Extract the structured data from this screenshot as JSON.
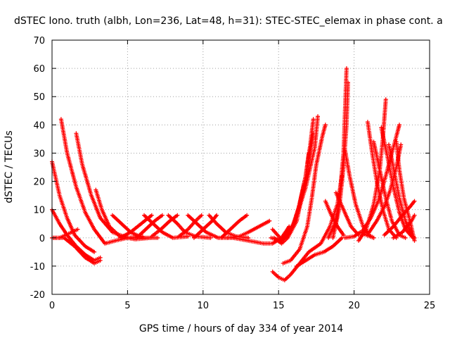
{
  "chart_data": {
    "type": "scatter",
    "title": "dSTEC Iono. truth (albh, Lon=236, Lat=48, h=31): STEC-STEC_elemax in phase cont. a",
    "xlabel": "GPS time / hours of day 334 of year 2014",
    "ylabel": "dSTEC  / TECUs",
    "xlim": [
      0,
      25
    ],
    "ylim": [
      -20,
      70
    ],
    "xticks": [
      0,
      5,
      10,
      15,
      20,
      25
    ],
    "yticks": [
      -20,
      -10,
      0,
      10,
      20,
      30,
      40,
      50,
      60,
      70
    ],
    "xtick_labels": [
      "0",
      "5",
      "10",
      "15",
      "20",
      "25"
    ],
    "ytick_labels": [
      "-20",
      "-10",
      "0",
      "10",
      "20",
      "30",
      "40",
      "50",
      "60",
      "70"
    ],
    "grid": true,
    "marker": "plus",
    "color": "#ff0000",
    "tracks": [
      [
        [
          0.0,
          27
        ],
        [
          0.5,
          15
        ],
        [
          1.0,
          7
        ],
        [
          1.5,
          1
        ],
        [
          2.2,
          -3
        ],
        [
          2.8,
          -5
        ]
      ],
      [
        [
          0.6,
          42
        ],
        [
          1.0,
          30
        ],
        [
          1.6,
          18
        ],
        [
          2.2,
          9
        ],
        [
          2.8,
          3
        ],
        [
          3.5,
          -2
        ],
        [
          4.2,
          -1
        ],
        [
          5.0,
          0
        ]
      ],
      [
        [
          1.6,
          37
        ],
        [
          2.0,
          26
        ],
        [
          2.6,
          15
        ],
        [
          3.2,
          7
        ],
        [
          4.0,
          2
        ],
        [
          5.0,
          0
        ],
        [
          6.0,
          0.5
        ]
      ],
      [
        [
          2.9,
          17
        ],
        [
          3.3,
          10
        ],
        [
          3.8,
          4
        ],
        [
          4.5,
          0.5
        ],
        [
          5.5,
          -0.5
        ],
        [
          6.5,
          0
        ]
      ],
      [
        [
          0.0,
          10
        ],
        [
          0.5,
          5
        ],
        [
          1.0,
          1
        ],
        [
          1.6,
          -3
        ],
        [
          2.2,
          -6
        ],
        [
          2.8,
          -8
        ],
        [
          3.2,
          -7
        ]
      ],
      [
        [
          0.0,
          0
        ],
        [
          0.8,
          0
        ],
        [
          1.5,
          -3
        ],
        [
          2.2,
          -7
        ],
        [
          2.8,
          -9
        ],
        [
          3.2,
          -8
        ]
      ],
      [
        [
          0.1,
          0
        ],
        [
          0.5,
          0
        ],
        [
          0.9,
          1
        ],
        [
          1.3,
          2
        ],
        [
          1.7,
          3
        ]
      ],
      [
        [
          4.0,
          8
        ],
        [
          4.6,
          5
        ],
        [
          5.2,
          2
        ],
        [
          6.0,
          0
        ],
        [
          7.0,
          0
        ]
      ],
      [
        [
          4.5,
          0
        ],
        [
          5.2,
          2
        ],
        [
          5.9,
          5
        ],
        [
          6.6,
          8
        ]
      ],
      [
        [
          5.6,
          0
        ],
        [
          6.2,
          3
        ],
        [
          6.8,
          6
        ],
        [
          7.3,
          8
        ]
      ],
      [
        [
          6.1,
          8
        ],
        [
          6.7,
          5
        ],
        [
          7.3,
          2
        ],
        [
          8.0,
          0
        ],
        [
          9.0,
          0.5
        ]
      ],
      [
        [
          6.6,
          0.5
        ],
        [
          7.2,
          3
        ],
        [
          7.8,
          6
        ],
        [
          8.3,
          8
        ]
      ],
      [
        [
          7.7,
          8
        ],
        [
          8.3,
          5
        ],
        [
          8.8,
          2
        ],
        [
          9.5,
          0.5
        ],
        [
          10.5,
          0
        ]
      ],
      [
        [
          8.4,
          0.5
        ],
        [
          9.0,
          3
        ],
        [
          9.5,
          6
        ],
        [
          9.9,
          8
        ]
      ],
      [
        [
          9.0,
          8
        ],
        [
          9.6,
          5
        ],
        [
          10.2,
          2
        ],
        [
          11.0,
          0
        ],
        [
          12.0,
          0
        ]
      ],
      [
        [
          9.4,
          0
        ],
        [
          10.0,
          3
        ],
        [
          10.6,
          6
        ],
        [
          10.9,
          8
        ]
      ],
      [
        [
          10.4,
          8
        ],
        [
          10.9,
          5
        ],
        [
          11.5,
          2
        ],
        [
          12.2,
          0.5
        ],
        [
          13.0,
          0
        ]
      ],
      [
        [
          11.2,
          0
        ],
        [
          11.8,
          3
        ],
        [
          12.4,
          6
        ],
        [
          12.9,
          8
        ]
      ],
      [
        [
          11.6,
          0
        ],
        [
          12.4,
          0.5
        ],
        [
          13.0,
          2
        ],
        [
          13.7,
          4
        ],
        [
          14.4,
          6
        ]
      ],
      [
        [
          12.0,
          0
        ],
        [
          13.0,
          -1
        ],
        [
          14.0,
          -2
        ],
        [
          14.6,
          -2
        ],
        [
          15.2,
          0
        ],
        [
          15.7,
          4
        ]
      ],
      [
        [
          14.6,
          3
        ],
        [
          15.1,
          0
        ],
        [
          15.6,
          1
        ],
        [
          16.0,
          5
        ],
        [
          16.4,
          12
        ],
        [
          16.8,
          22
        ],
        [
          17.0,
          30
        ]
      ],
      [
        [
          14.7,
          0
        ],
        [
          15.2,
          -2
        ],
        [
          15.6,
          0
        ],
        [
          16.2,
          6
        ],
        [
          16.6,
          16
        ],
        [
          17.0,
          28
        ],
        [
          17.3,
          37
        ]
      ],
      [
        [
          15.3,
          -9
        ],
        [
          15.8,
          -8
        ],
        [
          16.4,
          -4
        ],
        [
          16.9,
          4
        ],
        [
          17.2,
          14
        ],
        [
          17.5,
          26
        ],
        [
          17.9,
          36
        ],
        [
          18.1,
          40
        ]
      ],
      [
        [
          14.5,
          0
        ],
        [
          15.2,
          -1
        ],
        [
          15.8,
          2
        ],
        [
          16.3,
          10
        ],
        [
          16.8,
          22
        ],
        [
          17.1,
          33
        ],
        [
          17.3,
          42
        ]
      ],
      [
        [
          14.8,
          -1
        ],
        [
          15.4,
          0
        ],
        [
          16.1,
          6
        ],
        [
          16.8,
          18
        ],
        [
          17.4,
          32
        ],
        [
          17.6,
          43
        ]
      ],
      [
        [
          14.6,
          -12
        ],
        [
          15.0,
          -14
        ],
        [
          15.4,
          -15
        ],
        [
          15.8,
          -13
        ],
        [
          16.4,
          -9
        ],
        [
          17.0,
          -5
        ],
        [
          17.8,
          -2
        ],
        [
          18.4,
          4
        ],
        [
          18.9,
          12
        ],
        [
          19.2,
          22
        ]
      ],
      [
        [
          16.2,
          -10
        ],
        [
          16.8,
          -8
        ],
        [
          17.4,
          -6
        ],
        [
          18.0,
          -5
        ],
        [
          18.6,
          -3
        ],
        [
          19.2,
          0
        ]
      ],
      [
        [
          18.1,
          13
        ],
        [
          18.5,
          8
        ],
        [
          18.9,
          4
        ],
        [
          19.3,
          1
        ]
      ],
      [
        [
          18.3,
          0
        ],
        [
          18.8,
          6
        ],
        [
          19.1,
          18
        ],
        [
          19.3,
          30
        ],
        [
          19.4,
          45
        ],
        [
          19.5,
          60
        ]
      ],
      [
        [
          18.6,
          0
        ],
        [
          19.0,
          10
        ],
        [
          19.3,
          25
        ],
        [
          19.5,
          40
        ],
        [
          19.6,
          55
        ]
      ],
      [
        [
          18.8,
          16
        ],
        [
          19.3,
          10
        ],
        [
          19.8,
          4
        ],
        [
          20.3,
          1
        ]
      ],
      [
        [
          19.4,
          31
        ],
        [
          19.7,
          22
        ],
        [
          20.1,
          12
        ],
        [
          20.6,
          4
        ],
        [
          21.0,
          1
        ],
        [
          21.3,
          0
        ]
      ],
      [
        [
          19.4,
          0
        ],
        [
          20.0,
          0.5
        ],
        [
          20.4,
          2
        ],
        [
          20.8,
          1
        ],
        [
          21.3,
          0
        ]
      ],
      [
        [
          20.3,
          -1
        ],
        [
          20.8,
          3
        ],
        [
          21.3,
          12
        ],
        [
          21.7,
          24
        ],
        [
          21.9,
          35
        ],
        [
          22.1,
          49
        ]
      ],
      [
        [
          20.9,
          41
        ],
        [
          21.2,
          30
        ],
        [
          21.5,
          20
        ],
        [
          21.9,
          10
        ],
        [
          22.3,
          3
        ],
        [
          22.8,
          0
        ]
      ],
      [
        [
          21.3,
          34
        ],
        [
          21.7,
          24
        ],
        [
          22.1,
          14
        ],
        [
          22.5,
          6
        ],
        [
          23.0,
          1
        ],
        [
          23.4,
          0
        ]
      ],
      [
        [
          21.8,
          39
        ],
        [
          22.2,
          29
        ],
        [
          22.6,
          18
        ],
        [
          23.0,
          9
        ],
        [
          23.4,
          3
        ],
        [
          23.9,
          0
        ]
      ],
      [
        [
          22.3,
          33
        ],
        [
          22.6,
          25
        ],
        [
          23.0,
          14
        ],
        [
          23.4,
          6
        ],
        [
          23.8,
          1
        ],
        [
          24.0,
          0
        ]
      ],
      [
        [
          22.8,
          34
        ],
        [
          23.0,
          24
        ],
        [
          23.3,
          14
        ],
        [
          23.7,
          6
        ],
        [
          24.0,
          -1
        ]
      ],
      [
        [
          20.5,
          2
        ],
        [
          21.1,
          7
        ],
        [
          21.6,
          13
        ],
        [
          22.0,
          20
        ],
        [
          22.4,
          28
        ],
        [
          22.8,
          36
        ],
        [
          23.0,
          40
        ]
      ],
      [
        [
          21.0,
          2
        ],
        [
          21.5,
          6
        ],
        [
          22.0,
          11
        ],
        [
          22.4,
          17
        ],
        [
          22.8,
          25
        ],
        [
          23.1,
          33
        ]
      ],
      [
        [
          22.0,
          1
        ],
        [
          22.6,
          4
        ],
        [
          23.2,
          8
        ],
        [
          23.7,
          11
        ],
        [
          24.0,
          13
        ]
      ],
      [
        [
          22.6,
          0
        ],
        [
          23.2,
          2
        ],
        [
          23.8,
          6
        ],
        [
          24.0,
          8
        ]
      ]
    ]
  }
}
